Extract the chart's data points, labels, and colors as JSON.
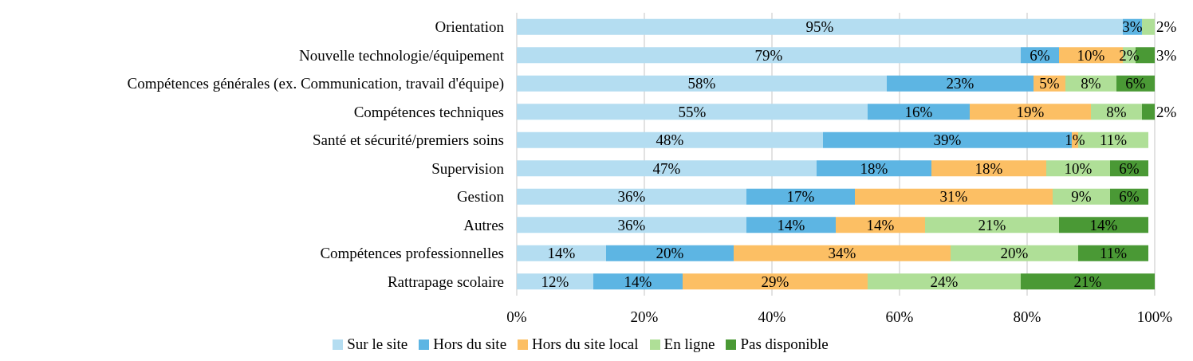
{
  "chart_data": {
    "type": "bar",
    "orientation": "horizontal",
    "stacked": true,
    "categories": [
      "Orientation",
      "Nouvelle technologie/équipement",
      "Compétences générales (ex. Communication, travail d'équipe)",
      "Compétences techniques",
      "Santé et sécurité/premiers soins",
      "Supervision",
      "Gestion",
      "Autres",
      "Compétences professionnelles",
      "Rattrapage scolaire"
    ],
    "series": [
      {
        "name": "Sur le site",
        "color": "#b4ddf1",
        "values": [
          95,
          79,
          58,
          55,
          48,
          47,
          36,
          36,
          14,
          12
        ],
        "value_labels": [
          "95%",
          "79%",
          "58%",
          "55%",
          "48%",
          "47%",
          "36%",
          "36%",
          "14%",
          "12%"
        ]
      },
      {
        "name": "Hors du site",
        "color": "#5db5e3",
        "values": [
          3,
          6,
          23,
          16,
          39,
          18,
          17,
          14,
          20,
          14
        ],
        "value_labels": [
          "3%",
          "6%",
          "23%",
          "16%",
          "39%",
          "18%",
          "17%",
          "14%",
          "20%",
          "14%"
        ]
      },
      {
        "name": "Hors du site local",
        "color": "#fcbf64",
        "values": [
          null,
          10,
          5,
          19,
          1,
          18,
          31,
          14,
          34,
          29
        ],
        "value_labels": [
          null,
          "10%",
          "5%",
          "19%",
          "1%",
          "18%",
          "31%",
          "14%",
          "34%",
          "29%"
        ]
      },
      {
        "name": "En ligne",
        "color": "#afdf97",
        "values": [
          2,
          2,
          8,
          8,
          11,
          10,
          9,
          21,
          20,
          24
        ],
        "value_labels": [
          "2%",
          "2%",
          "8%",
          "8%",
          "11%",
          "10%",
          "9%",
          "21%",
          "20%",
          "24%"
        ]
      },
      {
        "name": "Pas disponible",
        "color": "#4a9935",
        "values": [
          null,
          3,
          6,
          2,
          null,
          6,
          6,
          14,
          11,
          21
        ],
        "value_labels": [
          null,
          "3%",
          "6%",
          "2%",
          null,
          "6%",
          "6%",
          "14%",
          "11%",
          "21%"
        ]
      }
    ],
    "xlim": [
      0,
      100
    ],
    "xticks": [
      {
        "value": 0,
        "label": "0%"
      },
      {
        "value": 20,
        "label": "20%"
      },
      {
        "value": 40,
        "label": "40%"
      },
      {
        "value": 60,
        "label": "60%"
      },
      {
        "value": 80,
        "label": "80%"
      },
      {
        "value": 100,
        "label": "100%"
      }
    ],
    "grid": "x",
    "legend": "bottom"
  }
}
